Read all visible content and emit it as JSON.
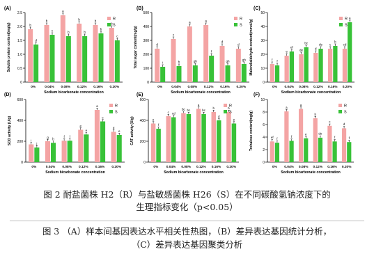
{
  "colors": {
    "R": "#f4a4a4",
    "S": "#38c238",
    "axis": "#000000"
  },
  "caption_fig2": {
    "line1": "图 2  耐盐菌株 H2（R）与盐敏感菌株 H26（S）在不同碳酸氢钠浓度下的",
    "line2": "生理指标变化（p<0.05）"
  },
  "caption_fig3": {
    "line1": "图 3  （A）样本间基因表达水平相关性热图，（B）差异表达基因统计分析，",
    "line2": "（C）差异表达基因聚类分析"
  },
  "chart_data": [
    {
      "panel": "(A)",
      "type": "bar",
      "categories": [
        "0%",
        "0.04%",
        "0.08%",
        "0.12%",
        "0.16%",
        "0.20%"
      ],
      "xlabel": "Sodium bicarbonate concentration",
      "ylabel": "Soluble protein content(mg/g)",
      "ylim": [
        0,
        2.5
      ],
      "yticks": [
        0,
        0.5,
        1.0,
        1.5,
        2.0,
        2.5
      ],
      "tick_labels": [
        "0",
        "0.5",
        "1.0",
        "1.5",
        "2.0",
        "2.5"
      ],
      "legend": [
        "R",
        "S"
      ],
      "legend_position": "top-right",
      "series": [
        {
          "name": "R",
          "values": [
            1.9,
            2.05,
            2.4,
            2.1,
            2.05,
            1.95
          ],
          "letters": [
            "b",
            "b",
            "a",
            "b",
            "b",
            "b"
          ]
        },
        {
          "name": "S",
          "values": [
            1.35,
            1.7,
            1.65,
            1.65,
            1.75,
            1.5
          ],
          "letters": [
            "d",
            "c",
            "b",
            "b",
            "b",
            "c"
          ]
        }
      ]
    },
    {
      "panel": "(B)",
      "type": "bar",
      "categories": [
        "0%",
        "0.04%",
        "0.08%",
        "0.12%",
        "0.16%",
        "0.20%"
      ],
      "xlabel": "Sodium bicarbonate concentration",
      "ylabel": "Total sugar content(mg/g)",
      "ylim": [
        0,
        500
      ],
      "yticks": [
        0,
        100,
        200,
        300,
        400,
        500
      ],
      "tick_labels": [
        "0",
        "100",
        "200",
        "300",
        "400",
        "500"
      ],
      "legend": [
        "R",
        "S"
      ],
      "legend_position": "top-right",
      "series": [
        {
          "name": "R",
          "values": [
            240,
            310,
            400,
            410,
            260,
            240
          ],
          "letters": [
            "d",
            "c",
            "a",
            "a",
            "d",
            "d"
          ]
        },
        {
          "name": "S",
          "values": [
            110,
            115,
            120,
            190,
            120,
            130
          ],
          "letters": [
            "i",
            "h",
            "gh",
            "f",
            "gh",
            "gh"
          ]
        }
      ]
    },
    {
      "panel": "(C)",
      "type": "bar",
      "categories": [
        "0%",
        "0.04%",
        "0.08%",
        "0.12%",
        "0.16%",
        "0.20%"
      ],
      "xlabel": "Sodium bicarbonate concentration",
      "ylabel": "Malondialdehyde content(mmol/g)",
      "ylim": [
        0,
        50
      ],
      "yticks": [
        0,
        10,
        20,
        30,
        40,
        50
      ],
      "tick_labels": [
        "0",
        "10",
        "20",
        "30",
        "40",
        "50"
      ],
      "legend": [
        "R",
        "S"
      ],
      "legend_position": "top-right",
      "series": [
        {
          "name": "R",
          "values": [
            13,
            19,
            20,
            21,
            24,
            24
          ],
          "letters": [
            "f",
            "e",
            "de",
            "d",
            "c",
            "cd"
          ]
        },
        {
          "name": "S",
          "values": [
            12,
            22,
            25,
            24,
            26,
            43
          ],
          "letters": [
            "f",
            "ef",
            "bc",
            "de",
            "b",
            "a"
          ]
        }
      ]
    },
    {
      "panel": "(D)",
      "type": "bar",
      "categories": [
        "0%",
        "0.04%",
        "0.08%",
        "0.12%",
        "0.16%",
        "0.20%"
      ],
      "xlabel": "Sodium bicarbonate concentration",
      "ylabel": "SOD activity (U/g)",
      "ylim": [
        0,
        600
      ],
      "yticks": [
        0,
        200,
        400,
        600
      ],
      "tick_labels": [
        "0",
        "200",
        "400",
        "600"
      ],
      "legend": [
        "R",
        "S"
      ],
      "legend_position": "top-right",
      "series": [
        {
          "name": "R",
          "values": [
            170,
            200,
            205,
            310,
            500,
            290
          ],
          "letters": [
            "i",
            "g",
            "f",
            "e",
            "a",
            "d"
          ]
        },
        {
          "name": "S",
          "values": [
            140,
            185,
            205,
            265,
            390,
            260
          ],
          "letters": [
            "j",
            "h",
            "f",
            "e",
            "c",
            "e"
          ]
        }
      ]
    },
    {
      "panel": "(E)",
      "type": "bar",
      "categories": [
        "0%",
        "0.04%",
        "0.08%",
        "0.12%",
        "0.16%",
        "0.20%"
      ],
      "xlabel": "Sodium bicarbonate concentration",
      "ylabel": "CAT activity (U/g)",
      "ylim": [
        0,
        600
      ],
      "yticks": [
        0,
        200,
        400,
        600
      ],
      "tick_labels": [
        "0",
        "200",
        "400",
        "600"
      ],
      "legend": [
        "R",
        "S"
      ],
      "legend_position": "top-right",
      "series": [
        {
          "name": "R",
          "values": [
            370,
            440,
            470,
            510,
            480,
            480
          ],
          "letters": [
            "e",
            "c",
            "bc",
            "a",
            "b",
            "b"
          ]
        },
        {
          "name": "S",
          "values": [
            320,
            430,
            460,
            460,
            400,
            370
          ],
          "letters": [
            "f",
            "cd",
            "bc",
            "bc",
            "d",
            "e"
          ]
        }
      ]
    },
    {
      "panel": "(F)",
      "type": "bar",
      "categories": [
        "0%",
        "0.04%",
        "0.08%",
        "0.12%",
        "0.16%",
        "0.20%"
      ],
      "xlabel": "Sodium bicarbonate concentration",
      "ylabel": "Trehalose content(mg/g)",
      "ylim": [
        0,
        10
      ],
      "yticks": [
        0,
        2,
        4,
        6,
        8,
        10
      ],
      "tick_labels": [
        "0",
        "2",
        "4",
        "6",
        "8",
        "10"
      ],
      "legend": [
        "R",
        "S"
      ],
      "legend_position": "top-right",
      "series": [
        {
          "name": "R",
          "values": [
            3.3,
            8.1,
            8.5,
            7.0,
            5.8,
            5.4
          ],
          "letters": [
            "ef",
            "a",
            "a",
            "b",
            "c",
            "d"
          ]
        },
        {
          "name": "S",
          "values": [
            3.1,
            3.4,
            3.8,
            3.9,
            3.3,
            3.2
          ],
          "letters": [
            "f",
            "f",
            "e",
            "de",
            "f",
            "f"
          ]
        }
      ]
    }
  ]
}
